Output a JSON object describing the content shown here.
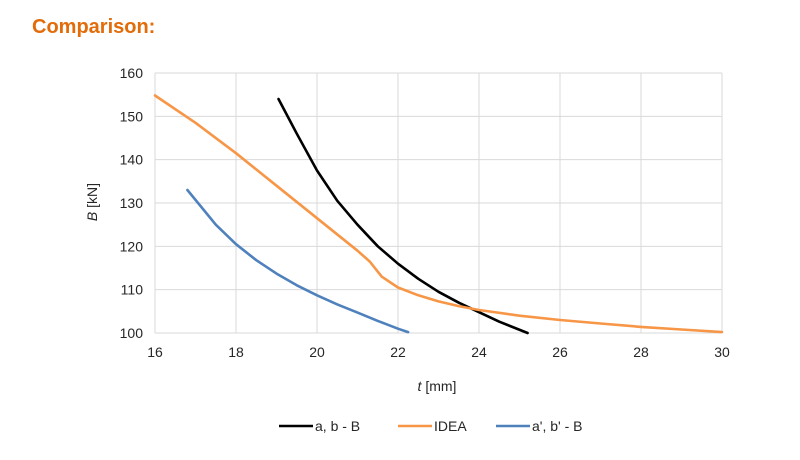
{
  "heading": "Comparison:",
  "chart_data": {
    "type": "line",
    "title": "",
    "xlabel_italic": "t",
    "xlabel_unit": " [mm]",
    "ylabel_italic": "B",
    "ylabel_unit": " [kN]",
    "xlim": [
      16,
      30
    ],
    "ylim": [
      100,
      160
    ],
    "xticks": [
      16,
      18,
      20,
      22,
      24,
      26,
      28,
      30
    ],
    "yticks": [
      100,
      110,
      120,
      130,
      140,
      150,
      160
    ],
    "grid": true,
    "legend_position": "bottom",
    "series": [
      {
        "name": "a, b - B",
        "color": "#000000",
        "x": [
          19.05,
          19.5,
          20.0,
          20.5,
          21.0,
          21.5,
          22.0,
          22.5,
          23.0,
          23.5,
          24.0,
          24.5,
          25.2
        ],
        "y": [
          154.0,
          146.0,
          137.5,
          130.5,
          125.0,
          120.0,
          116.0,
          112.5,
          109.5,
          107.0,
          104.8,
          102.6,
          100.0
        ]
      },
      {
        "name": "IDEA",
        "color": "#f79646",
        "x": [
          16.0,
          17.0,
          18.0,
          19.0,
          20.0,
          21.0,
          21.3,
          21.6,
          22.0,
          22.5,
          23.0,
          23.5,
          24.0,
          25.0,
          26.0,
          27.0,
          28.0,
          29.0,
          30.0
        ],
        "y": [
          154.8,
          148.5,
          141.5,
          134.0,
          126.5,
          119.0,
          116.5,
          113.0,
          110.5,
          108.7,
          107.3,
          106.2,
          105.3,
          104.0,
          103.0,
          102.2,
          101.4,
          100.8,
          100.2
        ]
      },
      {
        "name": "a', b' - B",
        "color": "#4f81bd",
        "x": [
          16.8,
          17.5,
          18.0,
          18.5,
          19.0,
          19.5,
          20.0,
          20.5,
          21.0,
          21.5,
          22.0,
          22.25
        ],
        "y": [
          133.0,
          125.0,
          120.5,
          116.8,
          113.7,
          111.0,
          108.7,
          106.6,
          104.7,
          102.8,
          101.0,
          100.2
        ]
      }
    ]
  }
}
